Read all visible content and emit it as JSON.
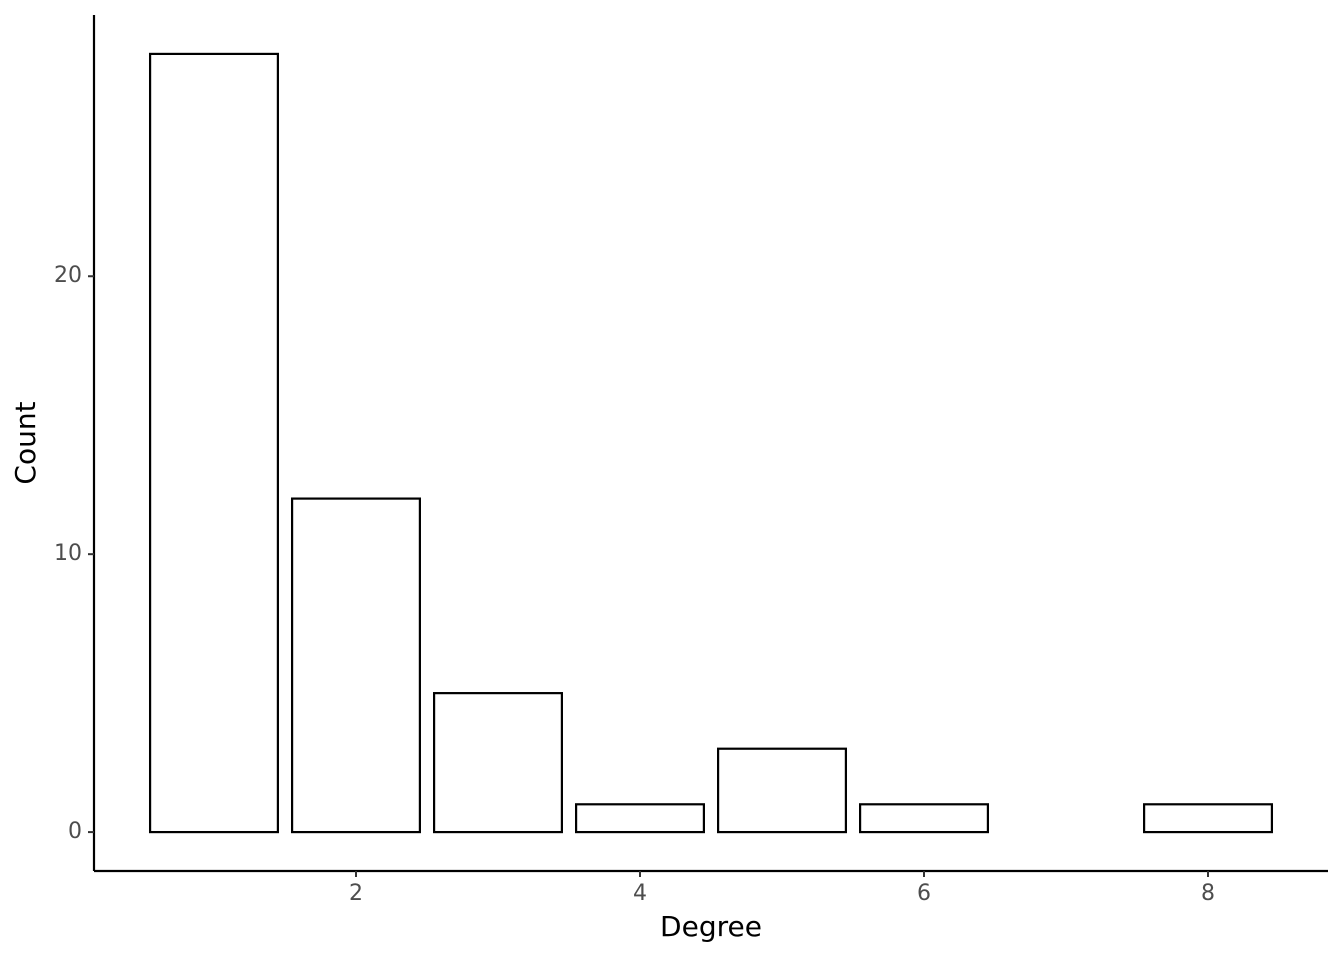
{
  "chart_data": {
    "type": "bar",
    "x_label": "Degree",
    "y_label": "Count",
    "x": [
      1,
      2,
      3,
      4,
      5,
      6,
      8
    ],
    "values": [
      28,
      12,
      5,
      1,
      3,
      1,
      1
    ],
    "color": "#ffffff",
    "edge_color": "#000000",
    "xlim": [
      0.155,
      8.845
    ],
    "xticks": [
      2,
      4,
      6,
      8
    ],
    "ylim": [
      -1.4,
      29.4
    ],
    "yticks": [
      0,
      10,
      20
    ],
    "grid": false
  }
}
